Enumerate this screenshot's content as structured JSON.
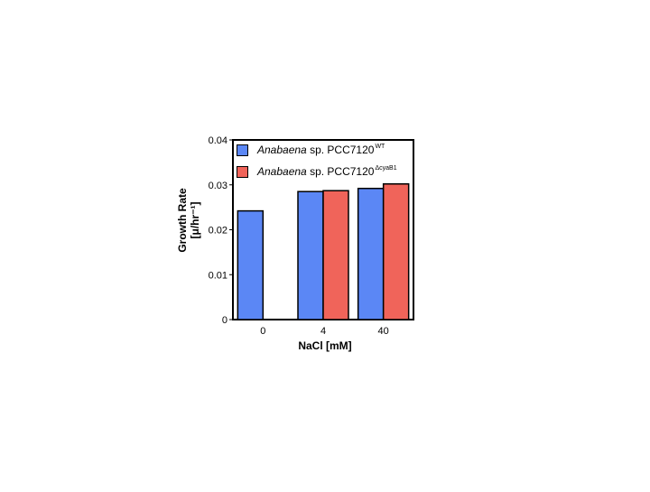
{
  "chart_data": {
    "type": "bar",
    "categories": [
      "0",
      "4",
      "40"
    ],
    "series": [
      {
        "name": "Anabaena sp. PCC7120 WT",
        "color": "#5b87f5",
        "values": [
          0.0242,
          0.0285,
          0.0292
        ]
      },
      {
        "name": "Anabaena sp. PCC7120 ΔcyaB1",
        "color": "#f0645a",
        "values": [
          null,
          0.0287,
          0.0302
        ]
      }
    ],
    "title": "",
    "xlabel": "NaCl [mM]",
    "ylabel_line1": "Growth Rate",
    "ylabel_line2": "[μ/hr⁻¹]",
    "ylim": [
      0,
      0.04
    ],
    "yticks": [
      "0",
      "0.01",
      "0.02",
      "0.03",
      "0.04"
    ],
    "grid": false,
    "legend_position": "top-inside",
    "legend": [
      {
        "italic": "Anabaena",
        "text": " sp. PCC7120",
        "sup": "WT"
      },
      {
        "italic": "Anabaena",
        "text": " sp. PCC7120",
        "sup": "ΔcyaB1"
      }
    ]
  }
}
